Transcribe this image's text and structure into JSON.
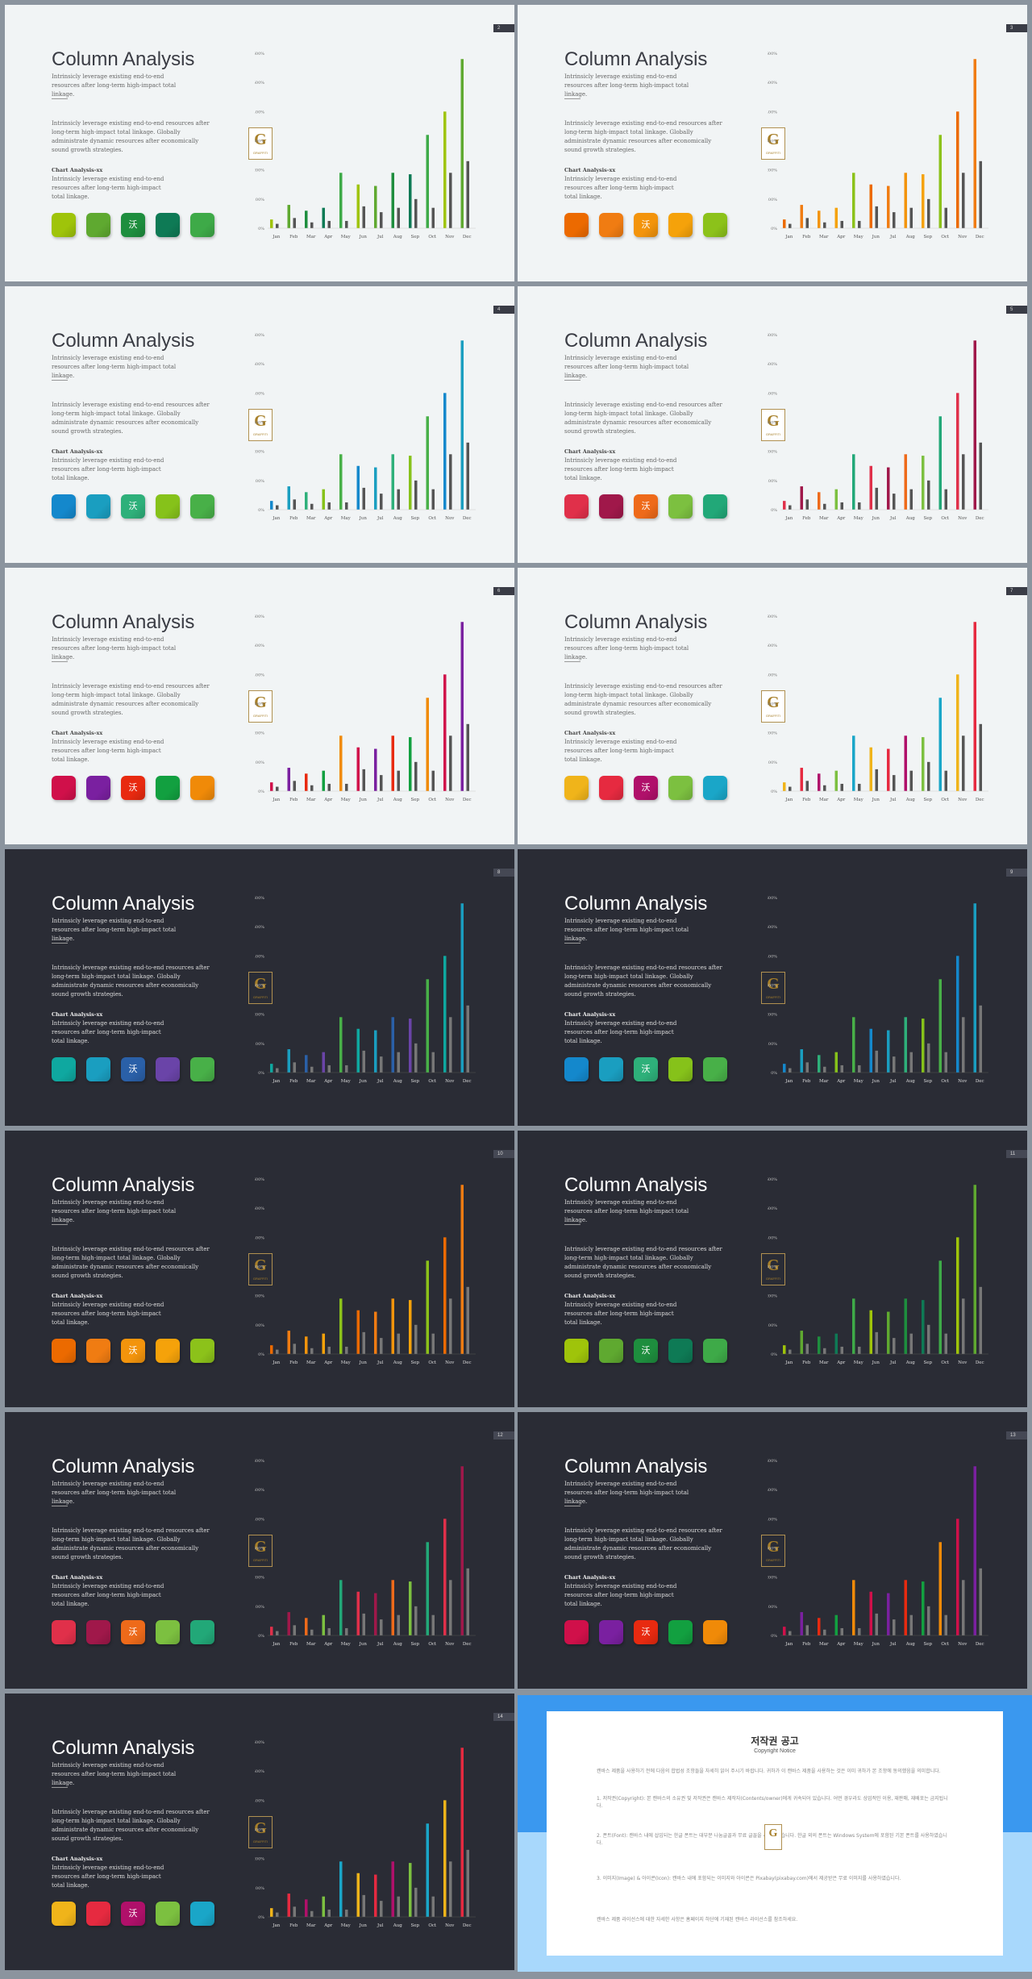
{
  "common": {
    "title": "Column Analysis",
    "subtitle": "Intrinsicly leverage existing end-to-end resources after long-term high-impact total linkage.",
    "body": "Intrinsicly leverage existing end-to-end resources after long-term high-impact total linkage. Globally administrate dynamic resources after economically sound growth strategies.",
    "heading2": "Chart Analysis-xx",
    "body2": "Intrinsicly leverage existing end-to-end resources after long-term high-impact total linkage.",
    "square_center_text": "沃",
    "logo_letter": "G",
    "logo_text": "GRAFFITI"
  },
  "chart_data": {
    "type": "bar",
    "categories": [
      "Jan",
      "Feb",
      "Mar",
      "Apr",
      "May",
      "Jun",
      "Jul",
      "Aug",
      "Sep",
      "Oct",
      "Nov",
      "Dec"
    ],
    "y_tick_labels": [
      "0%",
      "100%",
      "200%",
      "300%",
      "400%",
      "500%",
      "600%"
    ],
    "ylim": [
      0,
      600
    ],
    "series": [
      {
        "values": [
          30,
          80,
          60,
          70,
          190,
          150,
          145,
          190,
          185,
          320,
          400,
          580
        ]
      },
      {
        "values": [
          15,
          35,
          20,
          25,
          25,
          75,
          55,
          70,
          100,
          70,
          190,
          230
        ]
      }
    ]
  },
  "slides": [
    {
      "page": "2",
      "theme": "light",
      "colors": [
        "#9fc40a",
        "#5fa930",
        "#1e8e3e",
        "#0e7a55",
        "#3eaa48"
      ]
    },
    {
      "page": "3",
      "theme": "light",
      "colors": [
        "#ec6a00",
        "#f07c12",
        "#f3940c",
        "#f5a20a",
        "#8cc21a"
      ]
    },
    {
      "page": "4",
      "theme": "light",
      "colors": [
        "#1488cc",
        "#1a9ec0",
        "#2eb07a",
        "#86c21a",
        "#48b048"
      ]
    },
    {
      "page": "5",
      "theme": "light",
      "colors": [
        "#e0304a",
        "#a0184a",
        "#ee6a1a",
        "#7cc040",
        "#22a878"
      ]
    },
    {
      "page": "6",
      "theme": "light",
      "colors": [
        "#d0104a",
        "#7a20a0",
        "#e82a10",
        "#12a040",
        "#f08a08"
      ]
    },
    {
      "page": "7",
      "theme": "light",
      "colors": [
        "#f0b41a",
        "#e62a40",
        "#b0106a",
        "#7cc040",
        "#1aa6c8"
      ]
    },
    {
      "page": "8",
      "theme": "dark",
      "colors": [
        "#0fa8a0",
        "#1a9ec0",
        "#2a60a8",
        "#6a44a8",
        "#48b048"
      ]
    },
    {
      "page": "9",
      "theme": "dark",
      "colors": [
        "#1488cc",
        "#1a9ec0",
        "#2eb07a",
        "#86c21a",
        "#48b048"
      ]
    },
    {
      "page": "10",
      "theme": "dark",
      "colors": [
        "#ec6a00",
        "#f07c12",
        "#f3940c",
        "#f5a20a",
        "#8cc21a"
      ]
    },
    {
      "page": "11",
      "theme": "dark",
      "colors": [
        "#9fc40a",
        "#5fa930",
        "#1e8e3e",
        "#0e7a55",
        "#3eaa48"
      ]
    },
    {
      "page": "12",
      "theme": "dark",
      "colors": [
        "#e0304a",
        "#a0184a",
        "#ee6a1a",
        "#7cc040",
        "#22a878"
      ]
    },
    {
      "page": "13",
      "theme": "dark",
      "colors": [
        "#d0104a",
        "#7a20a0",
        "#e82a10",
        "#12a040",
        "#f08a08"
      ]
    },
    {
      "page": "14",
      "theme": "dark",
      "colors": [
        "#f0b41a",
        "#e62a40",
        "#b0106a",
        "#7cc040",
        "#1aa6c8"
      ]
    }
  ],
  "copyright": {
    "title": "저작권 공고",
    "subtitle": "Copyright Notice",
    "p1": "캔바스 제품을 사용하기 전에 다음의 합법성 조항들을 자세히 읽어 주시기 바랍니다. 귀하가 이 캔바스 제품을 사용하는 것은 이미 귀하가 본 조항에 동의했음을 의미합니다.",
    "p2": "1. 저작권(Copyright): 본 캔바스의 소유권 및 저작권은 캔바스 제작자(Contents/owner)에게 귀속되어 있습니다. 어떤 경우라도 상업적인 이용, 재판매, 재배포는 금지됩니다.",
    "p3": "2. 폰트(Font): 캔바스 내에 삽입되는 한글 폰트는 대부분 나눔글꼴과 무료 글꼴을 사용하였습니다. 한글 외의 폰트는 Windows System에 포함된 기본 폰트를 사용하였습니다.",
    "p4": "3. 이미지(Image) & 아이콘(Icon): 캔바스 내에 포함되는 이미지와 아이콘은 Pixabay(pixabay.com)에서 제공받은 무료 이미지를 사용하였습니다.",
    "p5": "캔바스 제품 라이선스에 대한 자세한 사항은 홈페이지 하단에 기재된 캔바스 라이선스를 참조하세요."
  }
}
